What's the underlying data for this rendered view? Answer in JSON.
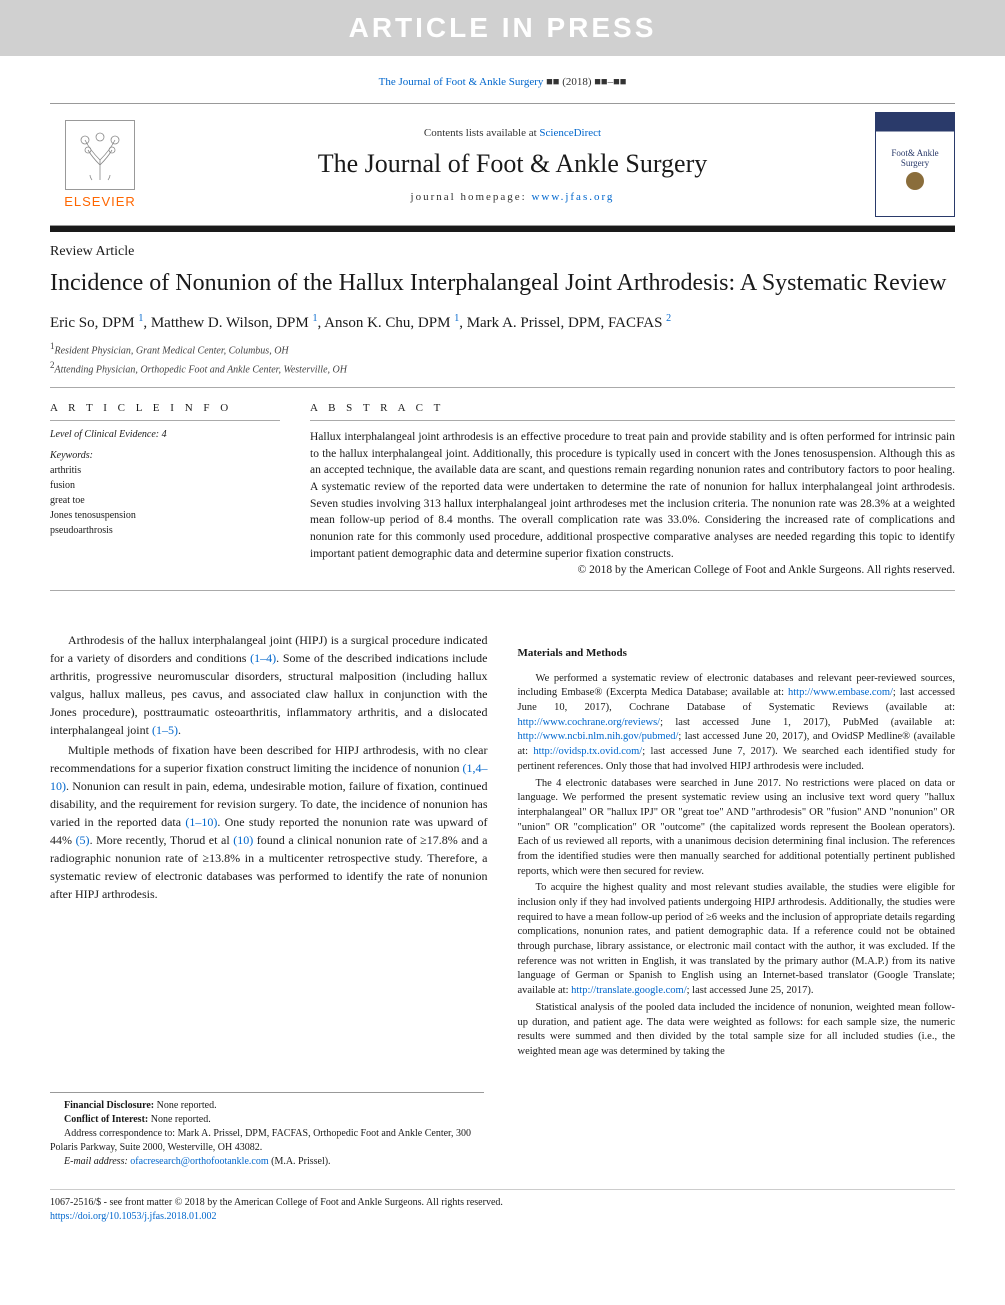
{
  "watermark": "ARTICLE IN PRESS",
  "citation": {
    "journal_link": "The Journal of Foot & Ankle Surgery",
    "vol_placeholder": "■■",
    "year": "(2018)",
    "pages_placeholder": "■■–■■"
  },
  "header": {
    "contents_prefix": "Contents lists available at ",
    "contents_link": "ScienceDirect",
    "journal_title": "The Journal of Foot & Ankle Surgery",
    "homepage_prefix": "journal homepage: ",
    "homepage_url": "www.jfas.org",
    "elsevier": "ELSEVIER",
    "cover_text": "Foot& Ankle Surgery"
  },
  "article": {
    "type": "Review Article",
    "title": "Incidence of Nonunion of the Hallux Interphalangeal Joint Arthrodesis: A Systematic Review",
    "authors_html": "Eric So, DPM ¹, Matthew D. Wilson, DPM ¹, Anson K. Chu, DPM ¹, Mark A. Prissel, DPM, FACFAS ²",
    "authors": [
      {
        "name": "Eric So, DPM",
        "sup": "1"
      },
      {
        "name": "Matthew D. Wilson, DPM",
        "sup": "1"
      },
      {
        "name": "Anson K. Chu, DPM",
        "sup": "1"
      },
      {
        "name": "Mark A. Prissel, DPM, FACFAS",
        "sup": "2"
      }
    ],
    "affiliations": [
      {
        "sup": "1",
        "text": "Resident Physician, Grant Medical Center, Columbus, OH"
      },
      {
        "sup": "2",
        "text": "Attending Physician, Orthopedic Foot and Ankle Center, Westerville, OH"
      }
    ]
  },
  "info": {
    "heading": "A R T I C L E   I N F O",
    "evidence": "Level of Clinical Evidence: 4",
    "keywords_label": "Keywords:",
    "keywords": [
      "arthritis",
      "fusion",
      "great toe",
      "Jones tenosuspension",
      "pseudoarthrosis"
    ]
  },
  "abstract": {
    "heading": "A B S T R A C T",
    "text": "Hallux interphalangeal joint arthrodesis is an effective procedure to treat pain and provide stability and is often performed for intrinsic pain to the hallux interphalangeal joint. Additionally, this procedure is typically used in concert with the Jones tenosuspension. Although this as an accepted technique, the available data are scant, and questions remain regarding nonunion rates and contributory factors to poor healing. A systematic review of the reported data were undertaken to determine the rate of nonunion for hallux interphalangeal joint arthrodesis. Seven studies involving 313 hallux interphalangeal joint arthrodeses met the inclusion criteria. The nonunion rate was 28.3% at a weighted mean follow-up period of 8.4 months. The overall complication rate was 33.0%. Considering the increased rate of complications and nonunion rate for this commonly used procedure, additional prospective comparative analyses are needed regarding this topic to identify important patient demographic data and determine superior fixation constructs.",
    "copyright": "© 2018 by the American College of Foot and Ankle Surgeons. All rights reserved."
  },
  "body": {
    "left": [
      {
        "type": "p",
        "text": "Arthrodesis of the hallux interphalangeal joint (HIPJ) is a surgical procedure indicated for a variety of disorders and conditions ",
        "cite": "(1–4)",
        "tail": ". Some of the described indications include arthritis, progressive neuromuscular disorders, structural malposition (including hallux valgus, hallux malleus, pes cavus, and associated claw hallux in conjunction with the Jones procedure), posttraumatic osteoarthritis, inflammatory arthritis, and a dislocated interphalangeal joint ",
        "cite2": "(1–5)",
        "tail2": "."
      },
      {
        "type": "p",
        "text": "Multiple methods of fixation have been described for HIPJ arthrodesis, with no clear recommendations for a superior fixation construct limiting the incidence of nonunion ",
        "cite": "(1,4–10)",
        "tail": ". Nonunion can result in pain, edema, undesirable motion, failure of fixation, continued disability, and the requirement for revision surgery. To date, the incidence of nonunion has varied in the reported data ",
        "cite2": "(1–10)",
        "tail2": ". One study reported the nonunion rate was upward of 44% ",
        "cite3": "(5)",
        "tail3": ". More recently, Thorud et al ",
        "cite4": "(10)",
        "tail4": " found a clinical nonunion rate of ≥17.8% and a radiographic nonunion rate of ≥13.8% in a multicenter retrospective study. Therefore, a systematic review of electronic databases was performed to identify the rate of nonunion after HIPJ arthrodesis."
      }
    ],
    "right_heading": "Materials and Methods",
    "right": [
      "We performed a systematic review of electronic databases and relevant peer-reviewed sources, including Embase® (Excerpta Medica Database; available at: http://www.embase.com/; last accessed June 10, 2017), Cochrane Database of Systematic Reviews (available at: http://www.cochrane.org/reviews/; last accessed June 1, 2017), PubMed (available at: http://www.ncbi.nlm.nih.gov/pubmed/; last accessed June 20, 2017), and OvidSP Medline® (available at: http://ovidsp.tx.ovid.com/; last accessed June 7, 2017). We searched each identified study for pertinent references. Only those that had involved HIPJ arthrodesis were included.",
      "The 4 electronic databases were searched in June 2017. No restrictions were placed on data or language. We performed the present systematic review using an inclusive text word query \"hallux interphalangeal\" OR \"hallux IPJ\" OR \"great toe\" AND \"arthrodesis\" OR \"fusion\" AND \"nonunion\" OR \"union\" OR \"complication\" OR \"outcome\" (the capitalized words represent the Boolean operators). Each of us reviewed all reports, with a unanimous decision determining final inclusion. The references from the identified studies were then manually searched for additional potentially pertinent published reports, which were then secured for review.",
      "To acquire the highest quality and most relevant studies available, the studies were eligible for inclusion only if they had involved patients undergoing HIPJ arthrodesis. Additionally, the studies were required to have a mean follow-up period of ≥6 weeks and the inclusion of appropriate details regarding complications, nonunion rates, and patient demographic data. If a reference could not be obtained through purchase, library assistance, or electronic mail contact with the author, it was excluded. If the reference was not written in English, it was translated by the primary author (M.A.P.) from its native language of German or Spanish to English using an Internet-based translator (Google Translate; available at: http://translate.google.com/; last accessed June 25, 2017).",
      "Statistical analysis of the pooled data included the incidence of nonunion, weighted mean follow-up duration, and patient age. The data were weighted as follows: for each sample size, the numeric results were summed and then divided by the total sample size for all included studies (i.e., the weighted mean age was determined by taking the"
    ],
    "right_links": {
      "embase": "http://www.embase.com/",
      "cochrane": "http://www.cochrane.org/reviews/",
      "pubmed": "http://www.ncbi.nlm.nih.gov/pubmed/",
      "ovid": "http://ovidsp.tx.ovid.com/",
      "google": "http://translate.google.com/"
    }
  },
  "footnotes": {
    "financial_label": "Financial Disclosure:",
    "financial": " None reported.",
    "conflict_label": "Conflict of Interest:",
    "conflict": " None reported.",
    "correspondence": "Address correspondence to: Mark A. Prissel, DPM, FACFAS, Orthopedic Foot and Ankle Center, 300 Polaris Parkway, Suite 2000, Westerville, OH 43082.",
    "email_label": "E-mail address: ",
    "email": "ofacresearch@orthofootankle.com",
    "email_suffix": " (M.A. Prissel)."
  },
  "footer": {
    "line1": "1067-2516/$ - see front matter © 2018 by the American College of Foot and Ankle Surgeons. All rights reserved.",
    "doi": "https://doi.org/10.1053/j.jfas.2018.01.002"
  },
  "colors": {
    "link": "#0066cc",
    "elsevier_orange": "#ff6600",
    "banner_bg": "#d0d0d0",
    "cover_blue": "#2a3a6a"
  },
  "typography": {
    "body_font": "Georgia, 'Times New Roman', serif",
    "title_size_pt": 24,
    "journal_title_size_pt": 26,
    "abstract_size_pt": 11.5,
    "body_size_pt": 12,
    "small_body_pt": 10.5,
    "footnote_pt": 10
  }
}
